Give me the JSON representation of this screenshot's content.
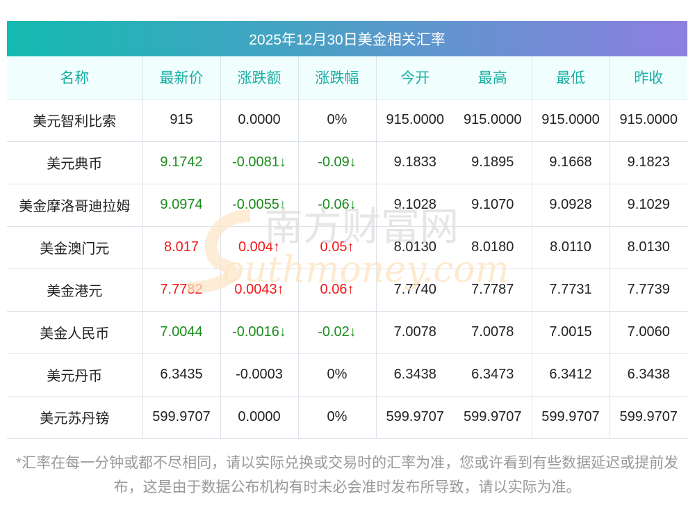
{
  "title": "2025年12月30日美金相关汇率",
  "headers": [
    "名称",
    "最新价",
    "涨跌额",
    "涨跌幅",
    "今开",
    "最高",
    "最低",
    "昨收"
  ],
  "rows": [
    {
      "name": "美元智利比索",
      "price": "915",
      "change": "0.0000",
      "pct": "0%",
      "open": "915.0000",
      "high": "915.0000",
      "low": "915.0000",
      "prev": "915.0000",
      "trend": "flat"
    },
    {
      "name": "美元典币",
      "price": "9.1742",
      "change": "-0.0081↓",
      "pct": "-0.09↓",
      "open": "9.1833",
      "high": "9.1895",
      "low": "9.1668",
      "prev": "9.1823",
      "trend": "down"
    },
    {
      "name": "美金摩洛哥迪拉姆",
      "price": "9.0974",
      "change": "-0.0055↓",
      "pct": "-0.06↓",
      "open": "9.1028",
      "high": "9.1070",
      "low": "9.0928",
      "prev": "9.1029",
      "trend": "down"
    },
    {
      "name": "美金澳门元",
      "price": "8.017",
      "change": "0.004↑",
      "pct": "0.05↑",
      "open": "8.0130",
      "high": "8.0180",
      "low": "8.0110",
      "prev": "8.0130",
      "trend": "up"
    },
    {
      "name": "美金港元",
      "price": "7.7782",
      "change": "0.0043↑",
      "pct": "0.06↑",
      "open": "7.7740",
      "high": "7.7787",
      "low": "7.7731",
      "prev": "7.7739",
      "trend": "up"
    },
    {
      "name": "美金人民币",
      "price": "7.0044",
      "change": "-0.0016↓",
      "pct": "-0.02↓",
      "open": "7.0078",
      "high": "7.0078",
      "low": "7.0015",
      "prev": "7.0060",
      "trend": "down"
    },
    {
      "name": "美元丹币",
      "price": "6.3435",
      "change": "-0.0003",
      "pct": "0%",
      "open": "6.3438",
      "high": "6.3473",
      "low": "6.3412",
      "prev": "6.3438",
      "trend": "flat"
    },
    {
      "name": "美元苏丹镑",
      "price": "599.9707",
      "change": "0.0000",
      "pct": "0%",
      "open": "599.9707",
      "high": "599.9707",
      "low": "599.9707",
      "prev": "599.9707",
      "trend": "flat"
    }
  ],
  "watermark": {
    "cn": "南方财富网",
    "en": "outhmoney.com"
  },
  "note": "*汇率在每一分钟或都不尽相同，请以实际兑换或交易时的汇率为准，您或许看到有些数据延迟或提前发布，这是由于数据公布机构有时未必会准时发布所导致，请以实际为准。",
  "colors": {
    "up": "#f21818",
    "down": "#1a8c1a",
    "header": "#1aaea3"
  }
}
